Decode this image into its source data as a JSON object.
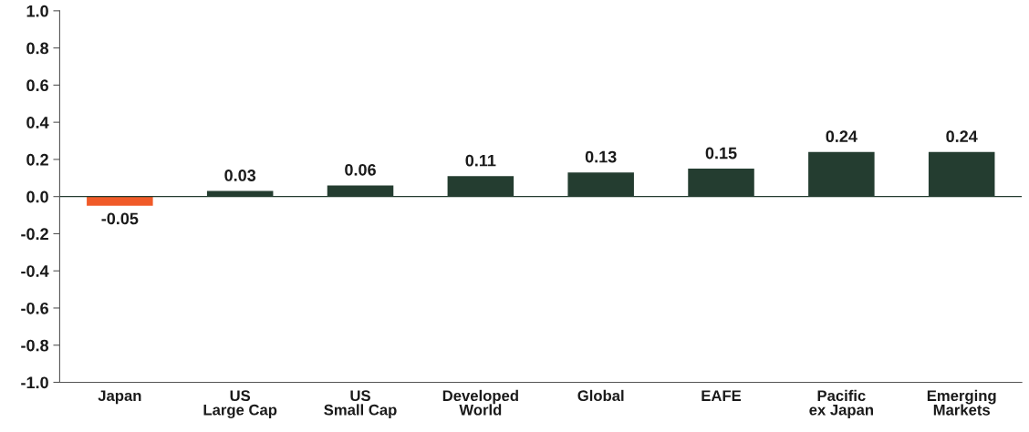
{
  "chart_data": {
    "type": "bar",
    "categories": [
      "Japan",
      "US\nLarge Cap",
      "US\nSmall Cap",
      "Developed\nWorld",
      "Global",
      "EAFE",
      "Pacific\nex Japan",
      "Emerging\nMarkets"
    ],
    "values": [
      -0.05,
      0.03,
      0.06,
      0.11,
      0.13,
      0.15,
      0.24,
      0.24
    ],
    "colors": [
      "#f05a28",
      "#243d30",
      "#243d30",
      "#243d30",
      "#243d30",
      "#243d30",
      "#243d30",
      "#243d30"
    ],
    "ylim": [
      -1.0,
      1.0
    ],
    "yticks": [
      {
        "value": -1,
        "label": "-1.0"
      },
      -0.8,
      -0.6,
      -0.4,
      -0.2,
      {
        "value": 0,
        "label": "0.0"
      },
      0.2,
      0.4,
      0.6,
      0.8,
      {
        "value": 1,
        "label": "1.0"
      }
    ],
    "ref_lines": [
      {
        "axis": "y",
        "value": 0,
        "color": "#243d30"
      }
    ],
    "data_labels": true,
    "grid": false,
    "legend": false
  }
}
